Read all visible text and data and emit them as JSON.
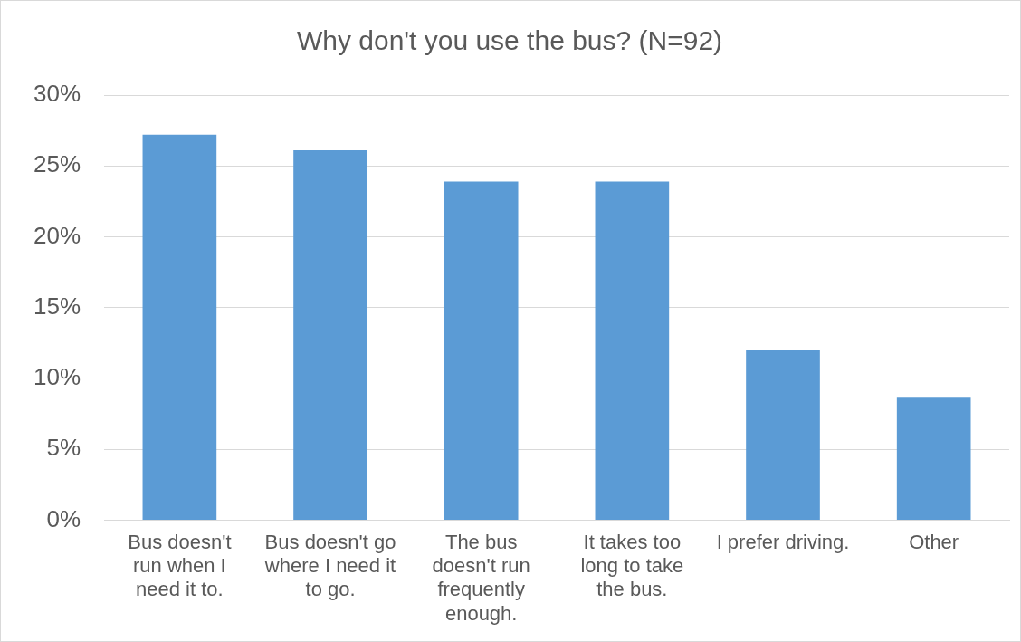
{
  "chart_data": {
    "type": "bar",
    "title": "Why don't you use the bus? (N=92)",
    "categories": [
      "Bus doesn't run when I need it to.",
      "Bus doesn't go where I need it to go.",
      "The bus doesn't run frequently enough.",
      "It takes too long to take the bus.",
      "I prefer driving.",
      "Other"
    ],
    "values": [
      27.2,
      26.1,
      23.9,
      23.9,
      12.0,
      8.7
    ],
    "color": "#5b9bd5",
    "ylim": [
      0,
      30
    ],
    "yticks": [
      {
        "value": 0,
        "label": "0%"
      },
      {
        "value": 5,
        "label": "5%"
      },
      {
        "value": 10,
        "label": "10%"
      },
      {
        "value": 15,
        "label": "15%"
      },
      {
        "value": 20,
        "label": "20%"
      },
      {
        "value": 25,
        "label": "25%"
      },
      {
        "value": 30,
        "label": "30%"
      }
    ],
    "grid": "y",
    "legend": false
  }
}
